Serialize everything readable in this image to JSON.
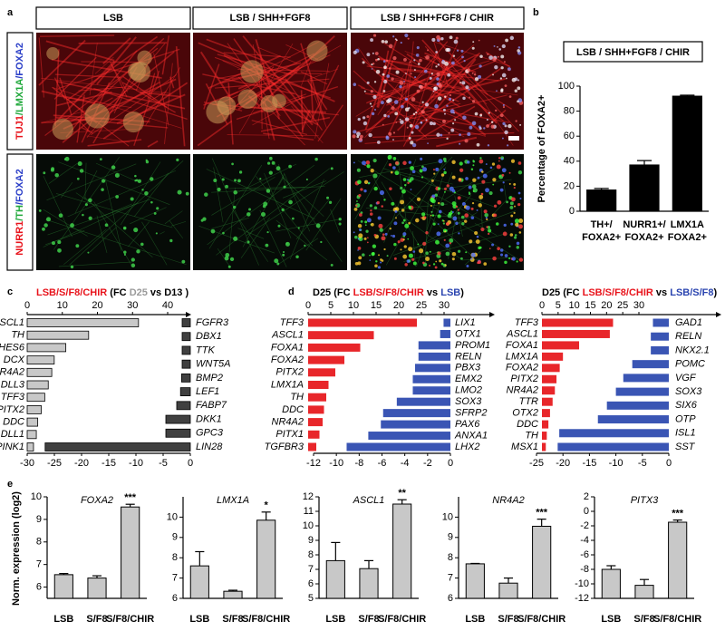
{
  "panel_a": {
    "panel": "a",
    "columns": [
      "LSB",
      "LSB / SHH+FGF8",
      "LSB / SHH+FGF8 / CHIR"
    ],
    "rows": [
      {
        "parts": [
          "TUJ1",
          "/LMX1A",
          "/FOXA2"
        ],
        "colors": [
          "#e8141c",
          "#1fa83a",
          "#2b3fc8"
        ]
      },
      {
        "parts": [
          "NURR1",
          "/TH",
          "/FOXA2"
        ],
        "colors": [
          "#e8141c",
          "#1fa83a",
          "#2b3fc8"
        ]
      }
    ]
  },
  "chart_data": [
    {
      "type": "bar",
      "panel": "b",
      "title": "LSB / SHH+FGF8 / CHIR",
      "ylabel": "Percentage of FOXA2+",
      "categories": [
        [
          "TH+/",
          "FOXA2+"
        ],
        [
          "NURR1+/",
          "FOXA2+"
        ],
        [
          "LMX1A",
          "FOXA2+"
        ]
      ],
      "values": [
        17,
        37,
        92
      ],
      "errors": [
        1.2,
        3.5,
        0.8
      ],
      "color": "#000000",
      "ylim": [
        0,
        100
      ],
      "yticks": [
        0,
        20,
        40,
        60,
        80,
        100
      ]
    },
    {
      "type": "diverging_bar",
      "panel": "c",
      "title_parts": [
        "LSB/S/F8/CHIR",
        " (FC ",
        "D25",
        " vs D13 )"
      ],
      "title_colors": [
        "#e8141c",
        "#000000",
        "#9a9a9a",
        "#000000"
      ],
      "up": {
        "categories": [
          "ASCL1",
          "TH",
          "HES6",
          "DCX",
          "NR4A2",
          "DLL3",
          "TFF3",
          "PITX2",
          "DDC",
          "DLL1",
          "PINK1"
        ],
        "values": [
          31.7,
          17.5,
          11,
          7.7,
          7,
          6,
          5,
          4,
          3,
          2.6,
          1.8
        ],
        "color": "#c8c8c8"
      },
      "down": {
        "categories": [
          "FGFR3",
          "DBX1",
          "TTK",
          "WNT5A",
          "BMP2",
          "LEF1",
          "FABP7",
          "DKK1",
          "GPC3",
          "LIN28"
        ],
        "values": [
          -1.5,
          -1.5,
          -1.5,
          -1.5,
          -1.6,
          -1.8,
          -2.5,
          -4.5,
          -4.5,
          -26.7
        ],
        "color": "#404040"
      },
      "x2lim": [
        0,
        40
      ],
      "x2ticks": [
        0,
        10,
        20,
        30,
        40
      ],
      "xlim": [
        -30,
        0
      ],
      "xticks": [
        -30,
        -25,
        -20,
        -15,
        -10,
        -5,
        0
      ]
    },
    {
      "type": "diverging_bar",
      "panel": "d",
      "title_parts": [
        "D25 (FC ",
        "LSB/S/F8/CHIR",
        " vs ",
        "LSB",
        ")"
      ],
      "title_colors": [
        "#000000",
        "#e8141c",
        "#000000",
        "#2b45b0",
        "#000000"
      ],
      "up": {
        "categories": [
          "TFF3",
          "ASCL1",
          "FOXA1",
          "FOXA2",
          "PITX2",
          "LMX1A",
          "TH",
          "DDC",
          "NR4A2",
          "PITX1",
          "TGFBR3"
        ],
        "values": [
          24,
          14.5,
          11.5,
          8,
          6,
          4.5,
          4,
          3.5,
          3.2,
          2.5,
          1.8
        ],
        "color": "#e8262a"
      },
      "down": {
        "categories": [
          "LIX1",
          "OTX1",
          "PROM1",
          "RELN",
          "PBX3",
          "EMX2",
          "LMO2",
          "SOX3",
          "SFRP2",
          "PAX6",
          "ANXA1",
          "LHX2"
        ],
        "values": [
          -0.6,
          -0.9,
          -2.8,
          -2.8,
          -3.1,
          -3.3,
          -3.3,
          -4.7,
          -5.9,
          -6.1,
          -7.2,
          -9.1
        ],
        "color": "#3a55b4"
      },
      "x2lim": [
        0,
        30
      ],
      "x2ticks": [
        0,
        5,
        10,
        15,
        20,
        25,
        30
      ],
      "xlim": [
        -12,
        0
      ],
      "xticks": [
        -12,
        -10,
        -8,
        -6,
        -4,
        -2,
        0
      ]
    },
    {
      "type": "diverging_bar",
      "title_parts": [
        "D25 (FC ",
        "LSB/S/F8/CHIR",
        " vs ",
        "LSB/S/F8",
        ")"
      ],
      "title_colors": [
        "#000000",
        "#e8141c",
        "#000000",
        "#2b45b0",
        "#000000"
      ],
      "up": {
        "categories": [
          "TFF3",
          "ASCL1",
          "FOXA1",
          "LMX1A",
          "FOXA2",
          "PITX2",
          "NR4A2",
          "TTR",
          "OTX2",
          "DDC",
          "TH",
          "MSX1"
        ],
        "values": [
          22,
          21,
          11.5,
          6.5,
          5.5,
          4.5,
          4,
          3.3,
          2.5,
          2,
          1.5,
          1.2
        ],
        "color": "#e8262a"
      },
      "down": {
        "categories": [
          "GAD1",
          "RELN",
          "NKX2.1",
          "POMC",
          "VGF",
          "SOX3",
          "SIX6",
          "OTP",
          "ISL1",
          "SST"
        ],
        "values": [
          -3,
          -3.4,
          -3.4,
          -6.9,
          -8.6,
          -10,
          -11.7,
          -13.4,
          -20.7,
          -21
        ],
        "color": "#3a55b4"
      },
      "x2lim": [
        0,
        30
      ],
      "x2ticks": [
        0,
        5,
        10,
        15,
        20,
        25,
        30
      ],
      "xlim": [
        -25,
        0
      ],
      "xticks": [
        -25,
        -20,
        -15,
        -10,
        -5,
        0
      ]
    },
    {
      "type": "bar",
      "panel": "e",
      "title": "FOXA2",
      "ylabel": "Norm. expression (log2)",
      "categories": [
        "LSB",
        "S/F8",
        "S/F8/CHIR"
      ],
      "values": [
        6.55,
        6.4,
        9.55
      ],
      "errors": [
        0.05,
        0.1,
        0.12
      ],
      "annotations": [
        null,
        null,
        "***"
      ],
      "color": "#c8c8c8",
      "ylim": [
        5.5,
        10
      ],
      "yticks": [
        6,
        7,
        8,
        9,
        10
      ]
    },
    {
      "type": "bar",
      "title": "LMX1A",
      "categories": [
        "LSB",
        "S/F8",
        "S/F8/CHIR"
      ],
      "values": [
        7.6,
        6.35,
        9.85
      ],
      "errors": [
        0.7,
        0.05,
        0.4
      ],
      "annotations": [
        null,
        null,
        "*"
      ],
      "color": "#c8c8c8",
      "ylim": [
        6,
        11
      ],
      "yticks": [
        6,
        7,
        8,
        9,
        10
      ]
    },
    {
      "type": "bar",
      "title": "ASCL1",
      "categories": [
        "LSB",
        "S/F8",
        "S/F8/CHIR"
      ],
      "values": [
        7.6,
        7.05,
        11.5
      ],
      "errors": [
        1.25,
        0.55,
        0.3
      ],
      "annotations": [
        null,
        null,
        "**"
      ],
      "color": "#c8c8c8",
      "ylim": [
        5,
        12
      ],
      "yticks": [
        5,
        6,
        7,
        8,
        9,
        10,
        11,
        12
      ]
    },
    {
      "type": "bar",
      "title": "NR4A2",
      "categories": [
        "LSB",
        "S/F8",
        "S/F8/CHIR"
      ],
      "values": [
        7.7,
        6.75,
        9.55
      ],
      "errors": [
        0.02,
        0.25,
        0.35
      ],
      "annotations": [
        null,
        null,
        "***"
      ],
      "color": "#c8c8c8",
      "ylim": [
        6,
        11
      ],
      "yticks": [
        6,
        7,
        8,
        9,
        10
      ]
    },
    {
      "type": "bar",
      "title": "PITX3",
      "categories": [
        "LSB",
        "S/F8",
        "S/F8/CHIR"
      ],
      "values": [
        -8,
        -10.2,
        -1.5
      ],
      "errors": [
        0.5,
        0.8,
        0.3
      ],
      "annotations": [
        null,
        null,
        "***"
      ],
      "color": "#c8c8c8",
      "ylim": [
        -12,
        2
      ],
      "yticks": [
        -12,
        -10,
        -8,
        -6,
        -4,
        -2,
        0,
        2
      ]
    }
  ]
}
